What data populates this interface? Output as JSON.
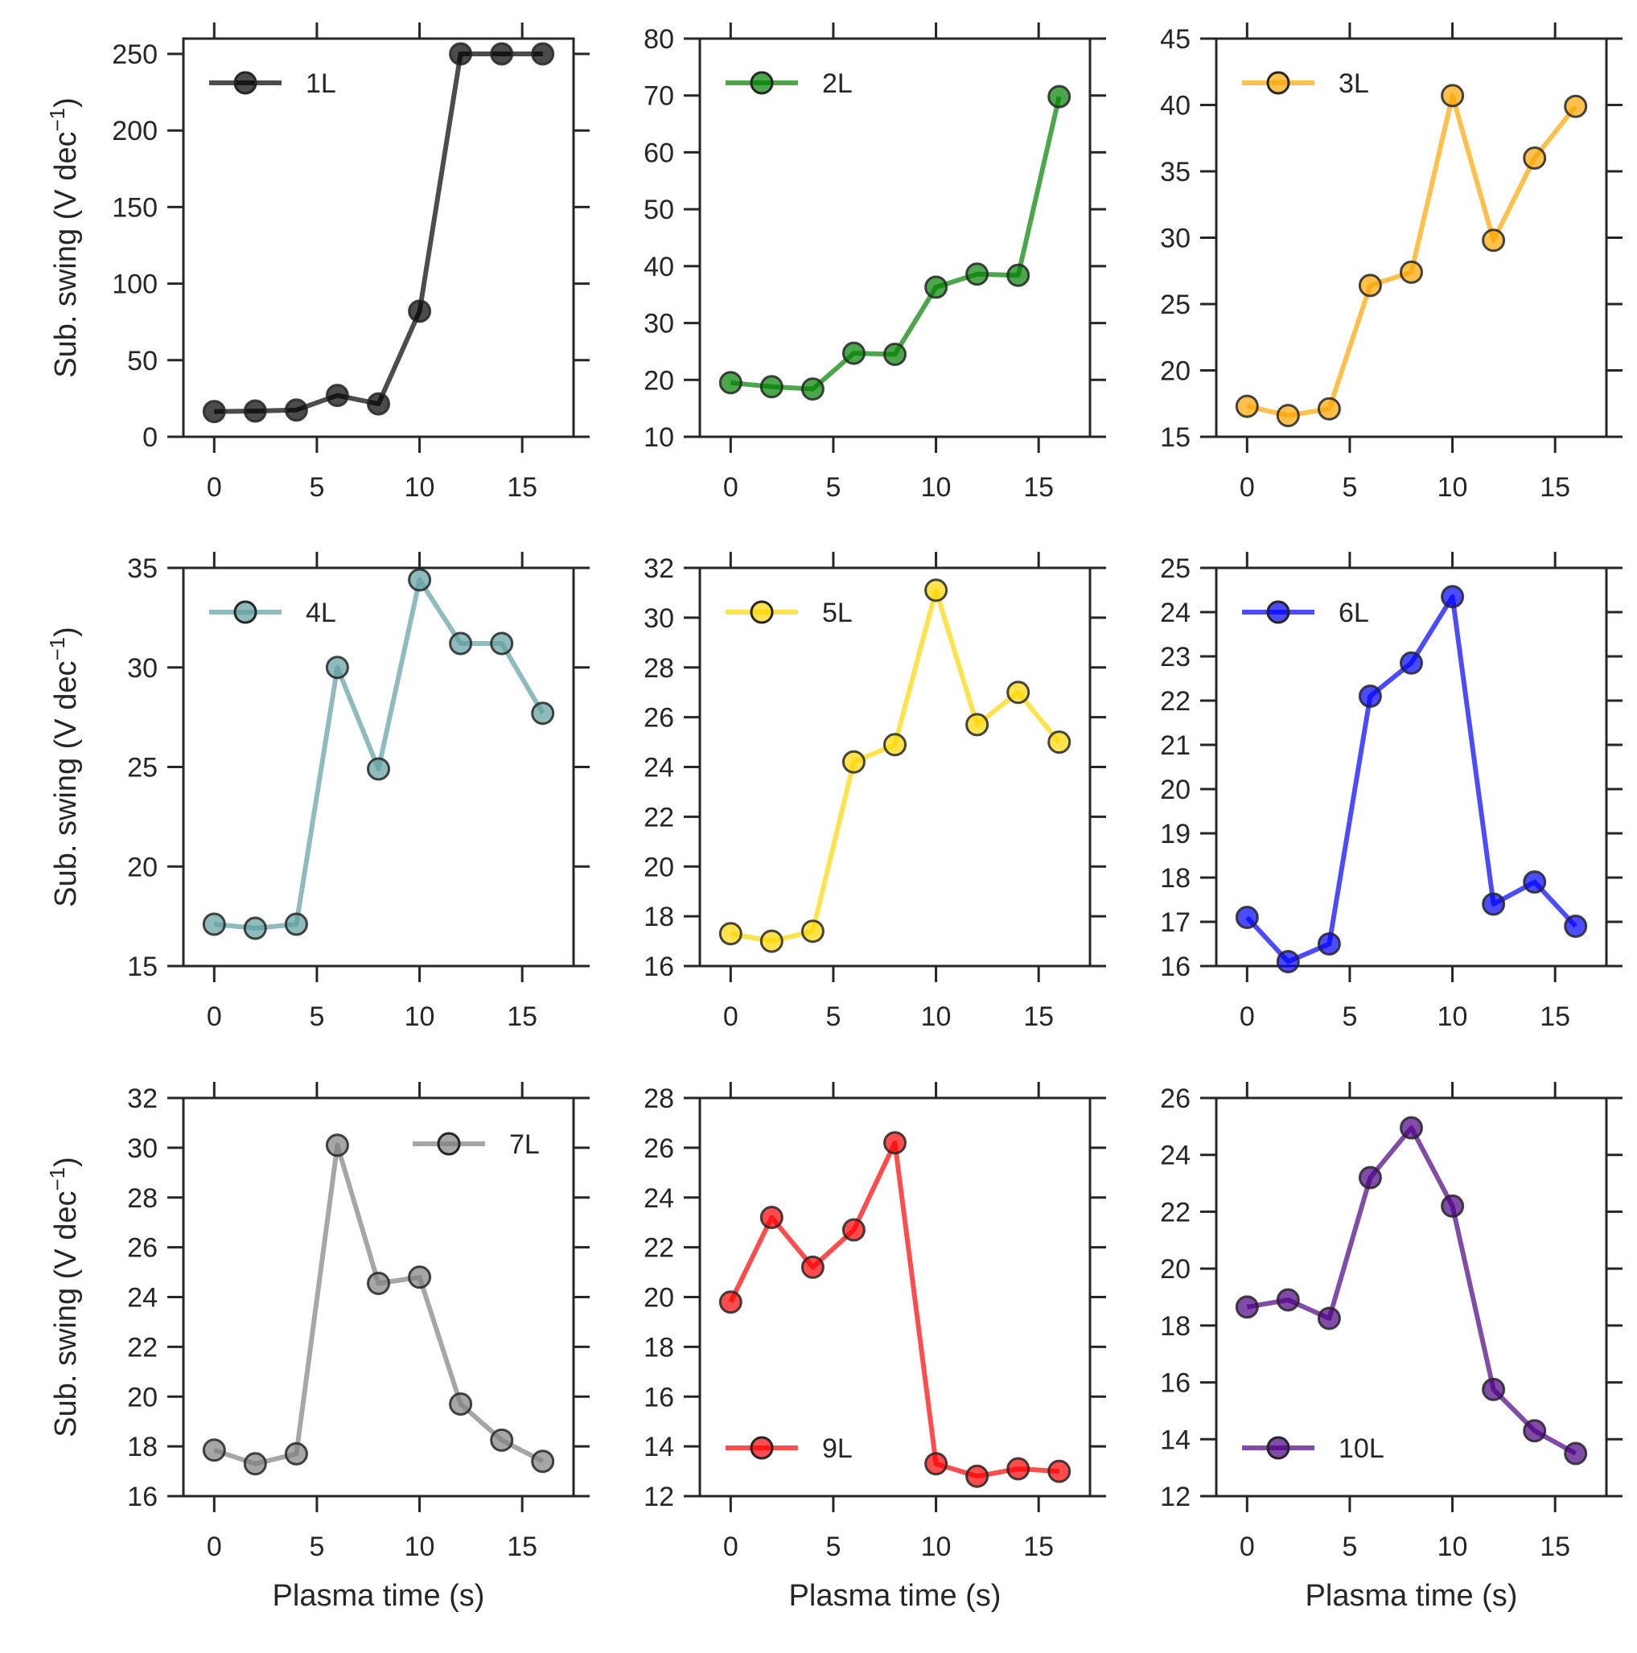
{
  "figure": {
    "ylabel_text": "Sub. swing (V dec",
    "ylabel_sup": "−1",
    "ylabel_close": ")",
    "xlabel": "Plasma time (s)"
  },
  "chart_data": [
    {
      "type": "line",
      "series": [
        {
          "name": "1L",
          "color": "#000000",
          "x": [
            0,
            2,
            4,
            6,
            8,
            10,
            12,
            14,
            16
          ],
          "y": [
            16.5,
            16.8,
            17.5,
            27,
            21.5,
            82,
            250,
            250,
            250
          ]
        }
      ],
      "xlim": [
        -1.5,
        17.5
      ],
      "ylim": [
        0,
        260
      ],
      "xticks": [
        0,
        5,
        10,
        15
      ],
      "yticks": [
        0,
        50,
        100,
        150,
        200,
        250
      ],
      "xticklabels": [
        "0",
        "5",
        "10",
        "15"
      ],
      "yticklabels": [
        "0",
        "50",
        "100",
        "150",
        "200",
        "250"
      ],
      "legend_loc": "upper left",
      "show_ylabel": true,
      "show_xlabel": false
    },
    {
      "type": "line",
      "series": [
        {
          "name": "2L",
          "color": "#008000",
          "x": [
            0,
            2,
            4,
            6,
            8,
            10,
            12,
            14,
            16
          ],
          "y": [
            19.5,
            18.8,
            18.4,
            24.7,
            24.5,
            36.3,
            38.6,
            38.4,
            69.8
          ]
        }
      ],
      "xlim": [
        -1.5,
        17.5
      ],
      "ylim": [
        10,
        80
      ],
      "xticks": [
        0,
        5,
        10,
        15
      ],
      "yticks": [
        10,
        20,
        30,
        40,
        50,
        60,
        70,
        80
      ],
      "xticklabels": [
        "0",
        "5",
        "10",
        "15"
      ],
      "yticklabels": [
        "10",
        "20",
        "30",
        "40",
        "50",
        "60",
        "70",
        "80"
      ],
      "legend_loc": "upper left",
      "show_ylabel": false,
      "show_xlabel": false
    },
    {
      "type": "line",
      "series": [
        {
          "name": "3L",
          "color": "#FFA500",
          "x": [
            0,
            2,
            4,
            6,
            8,
            10,
            12,
            14,
            16
          ],
          "y": [
            17.3,
            16.6,
            17.1,
            26.4,
            27.4,
            40.7,
            29.8,
            36.0,
            39.9
          ]
        }
      ],
      "xlim": [
        -1.5,
        17.5
      ],
      "ylim": [
        15,
        45
      ],
      "xticks": [
        0,
        5,
        10,
        15
      ],
      "yticks": [
        15,
        20,
        25,
        30,
        35,
        40,
        45
      ],
      "xticklabels": [
        "0",
        "5",
        "10",
        "15"
      ],
      "yticklabels": [
        "15",
        "20",
        "25",
        "30",
        "35",
        "40",
        "45"
      ],
      "legend_loc": "upper left",
      "show_ylabel": false,
      "show_xlabel": false
    },
    {
      "type": "line",
      "series": [
        {
          "name": "4L",
          "color": "#5F9EA0",
          "x": [
            0,
            2,
            4,
            6,
            8,
            10,
            12,
            14,
            16
          ],
          "y": [
            17.1,
            16.9,
            17.1,
            30.0,
            24.9,
            34.4,
            31.2,
            31.2,
            27.7
          ]
        }
      ],
      "xlim": [
        -1.5,
        17.5
      ],
      "ylim": [
        15,
        35
      ],
      "xticks": [
        0,
        5,
        10,
        15
      ],
      "yticks": [
        15,
        20,
        25,
        30,
        35
      ],
      "xticklabels": [
        "0",
        "5",
        "10",
        "15"
      ],
      "yticklabels": [
        "15",
        "20",
        "25",
        "30",
        "35"
      ],
      "legend_loc": "upper left",
      "show_ylabel": true,
      "show_xlabel": false
    },
    {
      "type": "line",
      "series": [
        {
          "name": "5L",
          "color": "#FFD700",
          "x": [
            0,
            2,
            4,
            6,
            8,
            10,
            12,
            14,
            16
          ],
          "y": [
            17.3,
            17.0,
            17.4,
            24.2,
            24.9,
            31.1,
            25.7,
            27.0,
            25.0
          ]
        }
      ],
      "xlim": [
        -1.5,
        17.5
      ],
      "ylim": [
        16,
        32
      ],
      "xticks": [
        0,
        5,
        10,
        15
      ],
      "yticks": [
        16,
        18,
        20,
        22,
        24,
        26,
        28,
        30,
        32
      ],
      "xticklabels": [
        "0",
        "5",
        "10",
        "15"
      ],
      "yticklabels": [
        "16",
        "18",
        "20",
        "22",
        "24",
        "26",
        "28",
        "30",
        "32"
      ],
      "legend_loc": "upper left",
      "show_ylabel": false,
      "show_xlabel": false
    },
    {
      "type": "line",
      "series": [
        {
          "name": "6L",
          "color": "#0000FF",
          "x": [
            0,
            2,
            4,
            6,
            8,
            10,
            12,
            14,
            16
          ],
          "y": [
            17.1,
            16.1,
            16.5,
            22.1,
            22.85,
            24.35,
            17.4,
            17.9,
            16.9
          ]
        }
      ],
      "xlim": [
        -1.5,
        17.5
      ],
      "ylim": [
        16,
        25
      ],
      "xticks": [
        0,
        5,
        10,
        15
      ],
      "yticks": [
        16,
        17,
        18,
        19,
        20,
        21,
        22,
        23,
        24,
        25
      ],
      "xticklabels": [
        "0",
        "5",
        "10",
        "15"
      ],
      "yticklabels": [
        "16",
        "17",
        "18",
        "19",
        "20",
        "21",
        "22",
        "23",
        "24",
        "25"
      ],
      "legend_loc": "upper left",
      "show_ylabel": false,
      "show_xlabel": false
    },
    {
      "type": "line",
      "series": [
        {
          "name": "7L",
          "color": "#808080",
          "x": [
            0,
            2,
            4,
            6,
            8,
            10,
            12,
            14,
            16
          ],
          "y": [
            17.85,
            17.3,
            17.7,
            30.1,
            24.55,
            24.8,
            19.7,
            18.25,
            17.4
          ]
        }
      ],
      "xlim": [
        -1.5,
        17.5
      ],
      "ylim": [
        16,
        32
      ],
      "xticks": [
        0,
        5,
        10,
        15
      ],
      "yticks": [
        16,
        18,
        20,
        22,
        24,
        26,
        28,
        30,
        32
      ],
      "xticklabels": [
        "0",
        "5",
        "10",
        "15"
      ],
      "yticklabels": [
        "16",
        "18",
        "20",
        "22",
        "24",
        "26",
        "28",
        "30",
        "32"
      ],
      "legend_loc": "upper right",
      "show_ylabel": true,
      "show_xlabel": true
    },
    {
      "type": "line",
      "series": [
        {
          "name": "9L",
          "color": "#FF0000",
          "x": [
            0,
            2,
            4,
            6,
            8,
            10,
            12,
            14,
            16
          ],
          "y": [
            19.8,
            23.2,
            21.2,
            22.7,
            26.2,
            13.3,
            12.8,
            13.1,
            13.0
          ]
        }
      ],
      "xlim": [
        -1.5,
        17.5
      ],
      "ylim": [
        12,
        28
      ],
      "xticks": [
        0,
        5,
        10,
        15
      ],
      "yticks": [
        12,
        14,
        16,
        18,
        20,
        22,
        24,
        26,
        28
      ],
      "xticklabels": [
        "0",
        "5",
        "10",
        "15"
      ],
      "yticklabels": [
        "12",
        "14",
        "16",
        "18",
        "20",
        "22",
        "24",
        "26",
        "28"
      ],
      "legend_loc": "lower left",
      "show_ylabel": false,
      "show_xlabel": true
    },
    {
      "type": "line",
      "series": [
        {
          "name": "10L",
          "color": "#4B0082",
          "x": [
            0,
            2,
            4,
            6,
            8,
            10,
            12,
            14,
            16
          ],
          "y": [
            18.65,
            18.9,
            18.25,
            23.2,
            24.95,
            22.2,
            15.75,
            14.3,
            13.5
          ]
        }
      ],
      "xlim": [
        -1.5,
        17.5
      ],
      "ylim": [
        12,
        26
      ],
      "xticks": [
        0,
        5,
        10,
        15
      ],
      "yticks": [
        12,
        14,
        16,
        18,
        20,
        22,
        24,
        26
      ],
      "xticklabels": [
        "0",
        "5",
        "10",
        "15"
      ],
      "yticklabels": [
        "12",
        "14",
        "16",
        "18",
        "20",
        "22",
        "24",
        "26"
      ],
      "legend_loc": "lower left",
      "show_ylabel": false,
      "show_xlabel": true
    }
  ]
}
